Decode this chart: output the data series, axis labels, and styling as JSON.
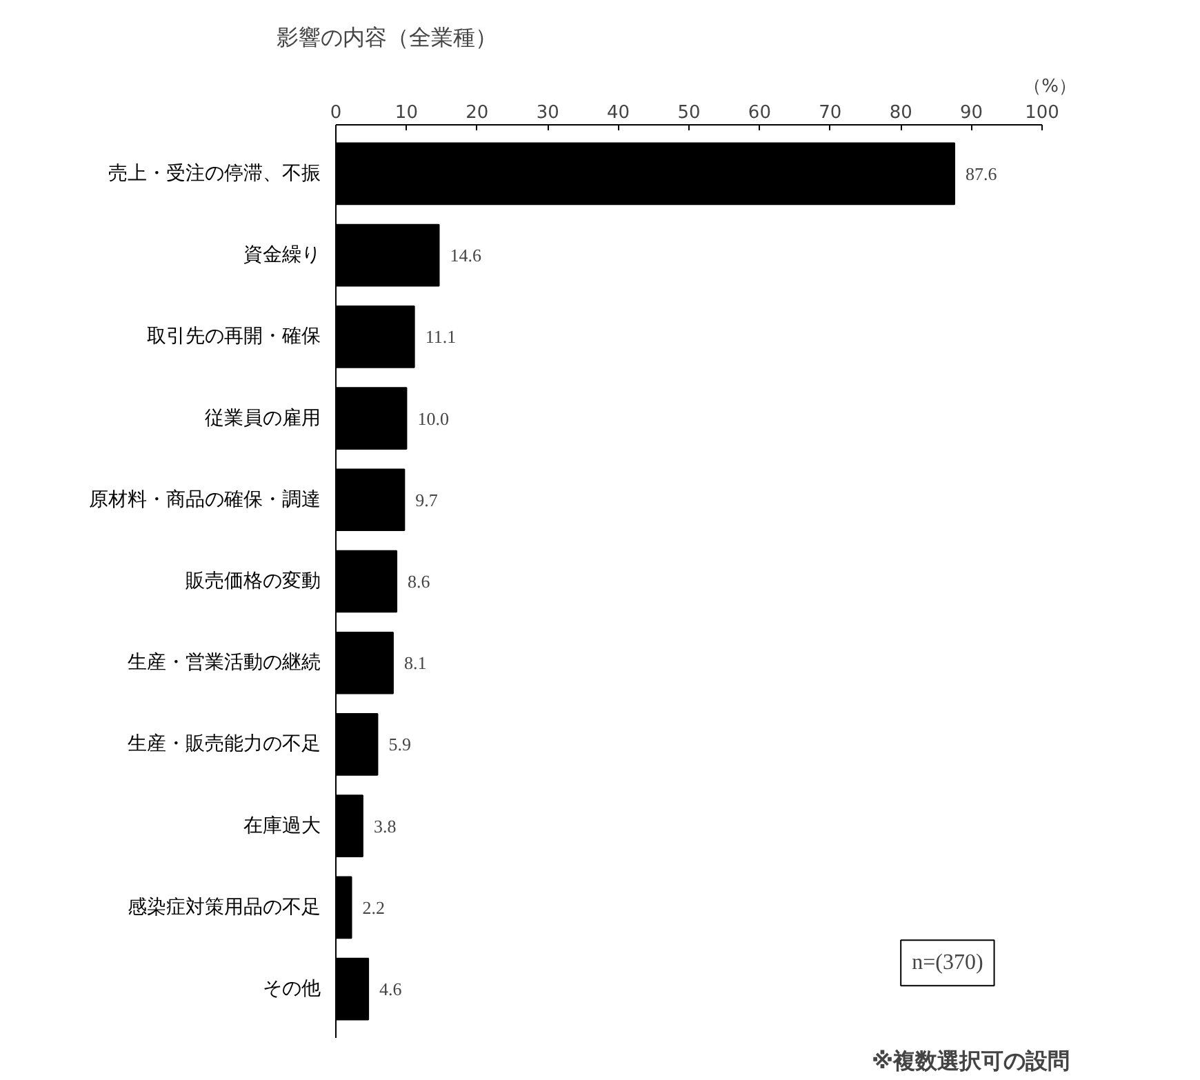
{
  "chart_data": {
    "type": "bar",
    "orientation": "horizontal",
    "title": "影響の内容（全業種）",
    "xlabel": "（%）",
    "categories": [
      "売上・受注の停滞、不振",
      "資金繰り",
      "取引先の再開・確保",
      "従業員の雇用",
      "原材料・商品の確保・調達",
      "販売価格の変動",
      "生産・営業活動の継続",
      "生産・販売能力の不足",
      "在庫過大",
      "感染症対策用品の不足",
      "その他"
    ],
    "values": [
      87.6,
      14.6,
      11.1,
      10.0,
      9.7,
      8.6,
      8.1,
      5.9,
      3.8,
      2.2,
      4.6
    ],
    "value_labels": [
      "87.6",
      "14.6",
      "11.1",
      "10.0",
      "9.7",
      "8.6",
      "8.1",
      "5.9",
      "3.8",
      "2.2",
      "4.6"
    ],
    "color": "#000000",
    "xlim": [
      0,
      100
    ],
    "xticks": [
      0,
      10,
      20,
      30,
      40,
      50,
      60,
      70,
      80,
      90,
      100
    ],
    "grid": false,
    "annotations": [
      "n=(370)",
      "※複数選択可の設問"
    ]
  }
}
